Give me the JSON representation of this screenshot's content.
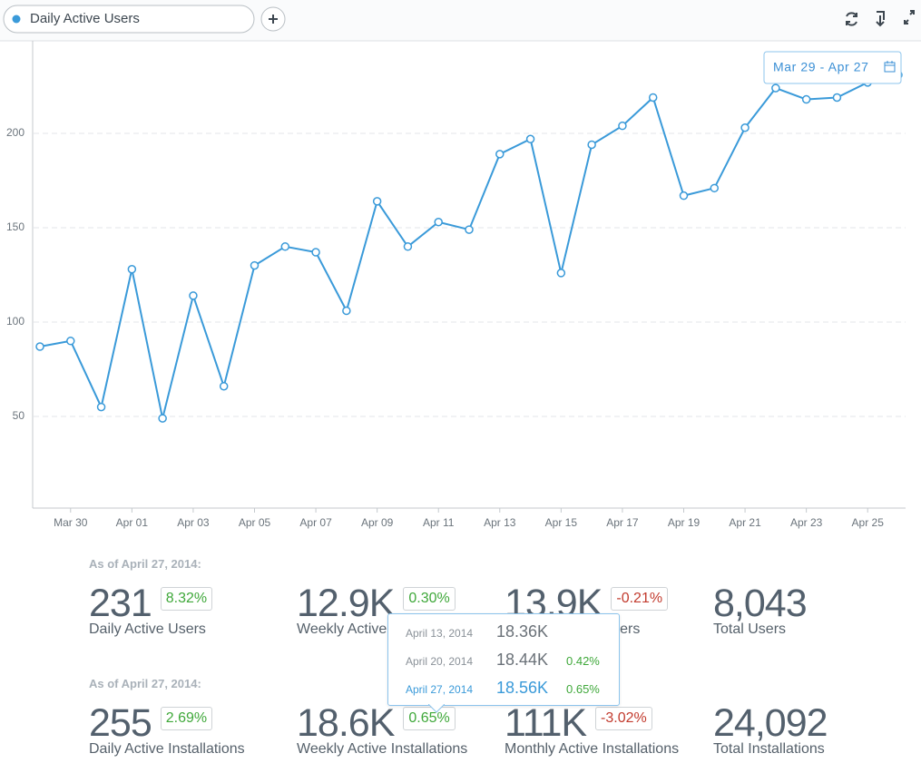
{
  "chart_data": {
    "type": "line",
    "date_range": "Mar 29 - Apr 27",
    "categories": [
      null,
      "Mar 30",
      null,
      "Apr 01",
      null,
      "Apr 03",
      null,
      "Apr 05",
      null,
      "Apr 07",
      null,
      "Apr 09",
      null,
      "Apr 11",
      null,
      "Apr 13",
      null,
      "Apr 15",
      null,
      "Apr 17",
      null,
      "Apr 19",
      null,
      "Apr 21",
      null,
      "Apr 23",
      null,
      "Apr 25",
      null
    ],
    "series": [
      {
        "name": "Daily Active Users",
        "color": "#3a9ad9",
        "values": [
          87,
          90,
          55,
          128,
          49,
          114,
          66,
          130,
          140,
          137,
          106,
          164,
          140,
          153,
          149,
          189,
          197,
          126,
          194,
          204,
          219,
          167,
          171,
          203,
          224,
          218,
          219,
          227,
          231
        ]
      }
    ],
    "ylim": [
      0,
      250
    ],
    "yticks": [
      50,
      100,
      150,
      200
    ],
    "grid": true
  },
  "stats": [
    {
      "heading": "As of April 27, 2014:",
      "items": [
        {
          "value": "231",
          "change": "8.32%",
          "label": "Daily Active Users"
        },
        {
          "value": "12.9K",
          "change": "0.30%",
          "label": "Weekly Active Users"
        },
        {
          "value": "13.9K",
          "change": "-0.21%",
          "label": "Monthly Active Users"
        },
        {
          "value": "8,043",
          "label": "Total Users"
        }
      ]
    },
    {
      "heading": "As of April 27, 2014:",
      "items": [
        {
          "value": "255",
          "change": "2.69%",
          "label": "Daily Active Installations"
        },
        {
          "value": "18.6K",
          "change": "0.65%",
          "label": "Weekly Active Installations"
        },
        {
          "value": "111K",
          "change": "-3.02%",
          "label": "Monthly Active Installations"
        },
        {
          "value": "24,092",
          "label": "Total Installations"
        }
      ]
    }
  ],
  "tooltip": {
    "rows": [
      {
        "date": "April 13, 2014",
        "value": "18.36K"
      },
      {
        "date": "April 20, 2014",
        "value": "18.44K",
        "change": "0.42%"
      },
      {
        "date": "April 27, 2014",
        "value": "18.56K",
        "change": "0.65%"
      }
    ]
  }
}
